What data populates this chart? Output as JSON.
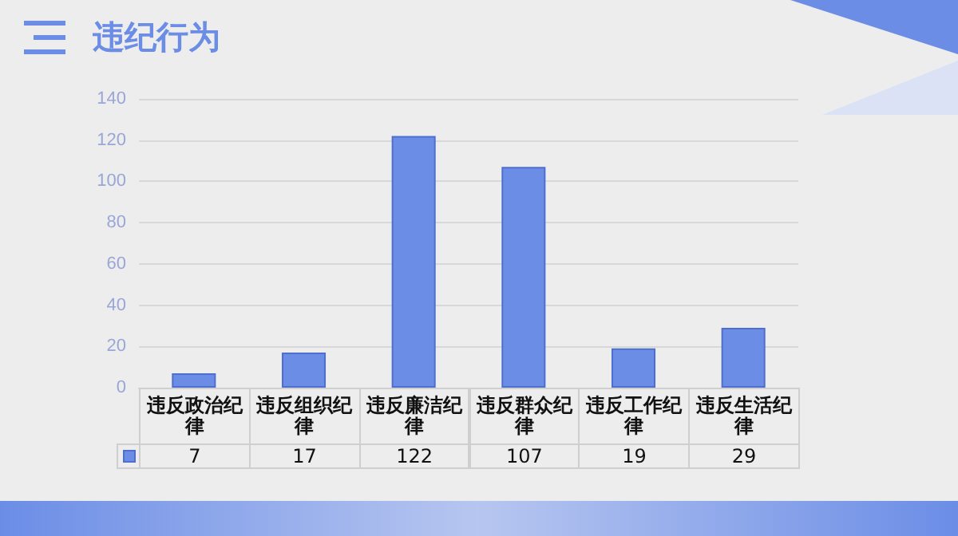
{
  "chart_data": {
    "type": "bar",
    "title": "违纪行为",
    "categories": [
      "违反政治纪律",
      "违反组织纪律",
      "违反廉洁纪律",
      "违反群众纪律",
      "违反工作纪律",
      "违反生活纪律"
    ],
    "values": [
      7,
      17,
      122,
      107,
      19,
      29
    ],
    "color": "#6b8de6",
    "ylim": [
      0,
      140
    ],
    "yticks": [
      0,
      20,
      40,
      60,
      80,
      100,
      120,
      140
    ],
    "grid": "y",
    "data_labels": true
  }
}
